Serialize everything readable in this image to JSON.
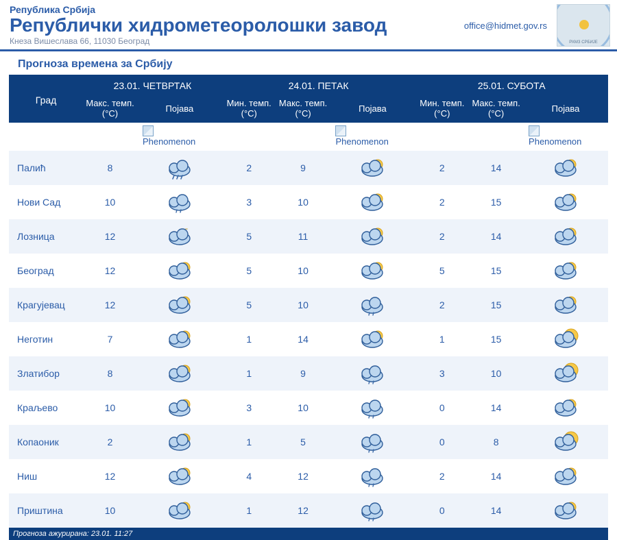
{
  "header": {
    "country": "Република Србија",
    "org": "Републички хидрометеоролошки завод",
    "address": "Кнеза Вишеслава 66, 11030 Београд",
    "email": "office@hidmet.gov.rs",
    "logo_caption": "РХМЗ СРБИЈЕ"
  },
  "page_title": "Прогноза времена за Србију",
  "columns": {
    "city": "Град",
    "max": "Макс. темп. (°C)",
    "min": "Мин. темп. (°C)",
    "phen": "Појава",
    "phen_caption": "Phenomenon"
  },
  "days": [
    {
      "label": "23.01. ЧЕТВРТАК",
      "has_min": false
    },
    {
      "label": "24.01. ПЕТАК",
      "has_min": true
    },
    {
      "label": "25.01. СУБОТА",
      "has_min": true
    }
  ],
  "icons": {
    "rain": {
      "type": "cloud",
      "rain": true,
      "sun": false,
      "moon": false
    },
    "drizzle": {
      "type": "cloud",
      "rain": "light",
      "sun": false,
      "moon": false
    },
    "cloud": {
      "type": "cloud",
      "rain": false,
      "sun": false,
      "moon": false
    },
    "sun-cloud": {
      "type": "cloud-sun",
      "rain": false,
      "sun": true,
      "moon": false
    },
    "moon-cloud": {
      "type": "cloud-moon",
      "rain": false,
      "sun": false,
      "moon": true
    },
    "sun-big": {
      "type": "sun-cloud-big",
      "rain": false,
      "sun": true,
      "moon": false
    }
  },
  "rows": [
    {
      "city": "Палић",
      "d": [
        {
          "max": 8,
          "ic": "rain"
        },
        {
          "min": 2,
          "max": 9,
          "ic": "sun-cloud"
        },
        {
          "min": 2,
          "max": 14,
          "ic": "sun-cloud"
        }
      ]
    },
    {
      "city": "Нови Сад",
      "d": [
        {
          "max": 10,
          "ic": "drizzle"
        },
        {
          "min": 3,
          "max": 10,
          "ic": "sun-cloud"
        },
        {
          "min": 2,
          "max": 15,
          "ic": "sun-cloud"
        }
      ]
    },
    {
      "city": "Лозница",
      "d": [
        {
          "max": 12,
          "ic": "moon-cloud"
        },
        {
          "min": 5,
          "max": 11,
          "ic": "sun-cloud"
        },
        {
          "min": 2,
          "max": 14,
          "ic": "sun-cloud"
        }
      ]
    },
    {
      "city": "Београд",
      "d": [
        {
          "max": 12,
          "ic": "sun-cloud"
        },
        {
          "min": 5,
          "max": 10,
          "ic": "sun-cloud"
        },
        {
          "min": 5,
          "max": 15,
          "ic": "sun-cloud"
        }
      ]
    },
    {
      "city": "Крагујевац",
      "d": [
        {
          "max": 12,
          "ic": "sun-cloud"
        },
        {
          "min": 5,
          "max": 10,
          "ic": "drizzle"
        },
        {
          "min": 2,
          "max": 15,
          "ic": "sun-cloud"
        }
      ]
    },
    {
      "city": "Неготин",
      "d": [
        {
          "max": 7,
          "ic": "sun-cloud"
        },
        {
          "min": 1,
          "max": 14,
          "ic": "sun-cloud"
        },
        {
          "min": 1,
          "max": 15,
          "ic": "sun-big"
        }
      ]
    },
    {
      "city": "Златибор",
      "d": [
        {
          "max": 8,
          "ic": "sun-cloud"
        },
        {
          "min": 1,
          "max": 9,
          "ic": "drizzle"
        },
        {
          "min": 3,
          "max": 10,
          "ic": "sun-big"
        }
      ]
    },
    {
      "city": "Краљево",
      "d": [
        {
          "max": 10,
          "ic": "sun-cloud"
        },
        {
          "min": 3,
          "max": 10,
          "ic": "drizzle"
        },
        {
          "min": 0,
          "max": 14,
          "ic": "sun-cloud"
        }
      ]
    },
    {
      "city": "Копаоник",
      "d": [
        {
          "max": 2,
          "ic": "sun-cloud"
        },
        {
          "min": 1,
          "max": 5,
          "ic": "drizzle"
        },
        {
          "min": 0,
          "max": 8,
          "ic": "sun-big"
        }
      ]
    },
    {
      "city": "Ниш",
      "d": [
        {
          "max": 12,
          "ic": "sun-cloud"
        },
        {
          "min": 4,
          "max": 12,
          "ic": "drizzle"
        },
        {
          "min": 2,
          "max": 14,
          "ic": "sun-cloud"
        }
      ]
    },
    {
      "city": "Приштина",
      "d": [
        {
          "max": 10,
          "ic": "sun-cloud"
        },
        {
          "min": 1,
          "max": 12,
          "ic": "drizzle"
        },
        {
          "min": 0,
          "max": 14,
          "ic": "sun-cloud"
        }
      ]
    }
  ],
  "footer": "Прогноза ажурирана:  23.01. 11:27",
  "style": {
    "header_blue": "#2b5ca8",
    "thead_bg": "#0d3e7d",
    "stripe_bg": "#eef3fa",
    "text_blue": "#2b5ca8",
    "address_grey": "#7a8aa6",
    "cloud_fill": "#bcd6ef",
    "cloud_stroke": "#2f5e9a",
    "sun_fill": "#f7c948",
    "moon_fill": "#f4e7b3",
    "rain_color": "#3b6aa8"
  }
}
